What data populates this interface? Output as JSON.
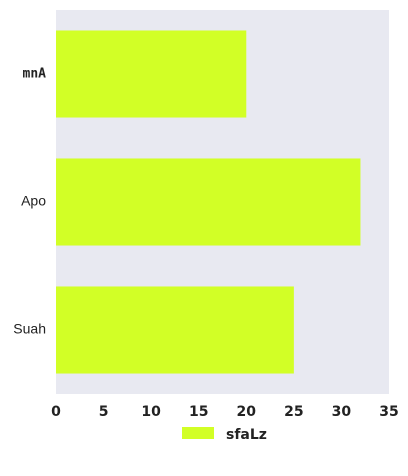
{
  "chart_data": {
    "type": "bar",
    "orientation": "horizontal",
    "categories": [
      "mnA",
      "Apo",
      "Suah"
    ],
    "category_label_bold": [
      true,
      false,
      false
    ],
    "series": [
      {
        "name": "sfaLz",
        "values": [
          20,
          32,
          25
        ],
        "color": "#d2ff26"
      }
    ],
    "xlim": [
      0,
      35
    ],
    "xticks": [
      0,
      5,
      10,
      15,
      20,
      25,
      30,
      35
    ],
    "title": "",
    "xlabel": "",
    "ylabel": "",
    "grid": false,
    "plot_background": "#e8e9f1",
    "legend": {
      "placement": "bottom-center",
      "entries": [
        "sfaLz"
      ]
    }
  }
}
